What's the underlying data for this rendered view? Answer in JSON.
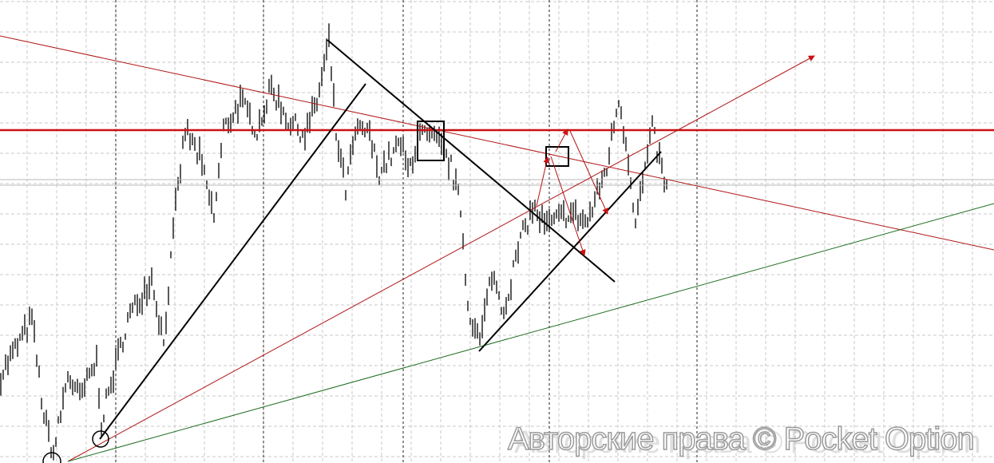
{
  "chart_data": {
    "type": "bar",
    "subtype": "ohlc-price-bars",
    "title": "",
    "xlabel": "",
    "ylabel": "",
    "grid": true,
    "bar_color": "#000000",
    "price_path": [
      [
        0,
        19
      ],
      [
        13,
        31
      ],
      [
        18,
        10
      ],
      [
        22,
        2
      ],
      [
        28,
        19
      ],
      [
        33,
        14
      ],
      [
        40,
        22
      ],
      [
        42,
        9
      ],
      [
        53,
        31
      ],
      [
        63,
        40
      ],
      [
        68,
        26
      ],
      [
        73,
        55
      ],
      [
        77,
        72
      ],
      [
        83,
        66
      ],
      [
        89,
        53
      ],
      [
        93,
        72
      ],
      [
        100,
        78
      ],
      [
        107,
        72
      ],
      [
        113,
        81
      ],
      [
        120,
        74
      ],
      [
        127,
        71
      ],
      [
        132,
        78
      ],
      [
        137,
        91
      ],
      [
        140,
        71
      ],
      [
        144,
        59
      ],
      [
        148,
        71
      ],
      [
        153,
        72
      ],
      [
        158,
        63
      ],
      [
        167,
        69
      ],
      [
        170,
        63
      ],
      [
        175,
        71
      ],
      [
        183,
        69
      ],
      [
        188,
        64
      ],
      [
        192,
        55
      ],
      [
        195,
        34
      ],
      [
        200,
        26
      ],
      [
        205,
        41
      ],
      [
        210,
        33
      ],
      [
        217,
        48
      ],
      [
        222,
        55
      ],
      [
        228,
        51
      ],
      [
        237,
        54
      ],
      [
        245,
        52
      ],
      [
        253,
        64
      ],
      [
        258,
        79
      ],
      [
        262,
        66
      ],
      [
        265,
        52
      ],
      [
        272,
        72
      ],
      [
        278,
        59
      ]
    ],
    "annotations": {
      "red_color": "#cc1111",
      "green_color": "#1f6e1f",
      "trend_color": "#000000"
    }
  },
  "watermark": "Авторские права © Pocket Option"
}
